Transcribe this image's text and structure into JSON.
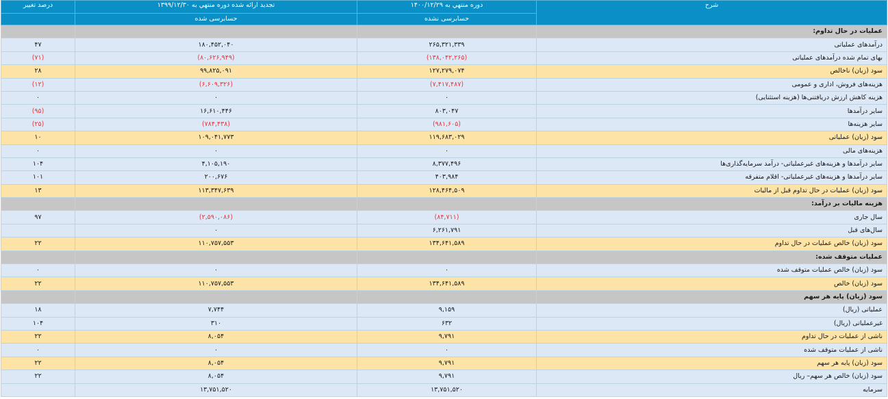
{
  "header": {
    "col_desc": "شرح",
    "col_current": "دوره منتهي به ۱۴۰۰/۱۲/۲۹",
    "col_previous": "تجدید ارائه شده دوره منتهي به ۱۳۹۹/۱۲/۳۰",
    "col_change": "درصد تغییر",
    "current_status": "حسابرسی نشده",
    "previous_status": "حسابرسی شده"
  },
  "rows": [
    {
      "type": "section",
      "label": "عملیات در حال تداوم:",
      "current": "",
      "previous": "",
      "change": ""
    },
    {
      "type": "norm",
      "label": "درآمدهای عملیاتی",
      "current": "۲۶۵,۳۲۱,۳۳۹",
      "previous": "۱۸۰,۴۵۲,۰۴۰",
      "change": "۴۷"
    },
    {
      "type": "norm",
      "label": "بهای تمام شده درآمدهای عملیاتی",
      "current": "(۱۳۸,۰۴۲,۲۶۵)",
      "previous": "(۸۰,۶۲۶,۹۴۹)",
      "change": "(۷۱)"
    },
    {
      "type": "total",
      "label": "سود (زيان) ناخالص",
      "current": "۱۲۷,۲۷۹,۰۷۴",
      "previous": "۹۹,۸۲۵,۰۹۱",
      "change": "۲۸"
    },
    {
      "type": "norm",
      "label": "هزینه‌های فروش، اداری و عمومی",
      "current": "(۷,۴۱۷,۴۸۷)",
      "previous": "(۶,۶۰۹,۳۲۶)",
      "change": "(۱۲)"
    },
    {
      "type": "norm",
      "label": "هزینه کاهش ارزش دریافتنی‌ها (هزینه استثنایی)",
      "current": "۰",
      "previous": "۰",
      "change": "۰"
    },
    {
      "type": "norm",
      "label": "سایر درآمدها",
      "current": "۸۰۳,۰۴۷",
      "previous": "۱۶,۶۱۰,۴۴۶",
      "change": "(۹۵)"
    },
    {
      "type": "norm",
      "label": "سایر هزینه‌ها",
      "current": "(۹۸۱,۶۰۵)",
      "previous": "(۷۸۴,۴۳۸)",
      "change": "(۲۵)"
    },
    {
      "type": "total",
      "label": "سود (زيان) عملیاتی",
      "current": "۱۱۹,۶۸۳,۰۲۹",
      "previous": "۱۰۹,۰۴۱,۷۷۳",
      "change": "۱۰"
    },
    {
      "type": "norm",
      "label": "هزینه‌های مالی",
      "current": "۰",
      "previous": "۰",
      "change": "۰"
    },
    {
      "type": "norm",
      "label": "سایر درآمدها و هزینه‌های غیرعملیاتی- درآمد سرمایه‌گذاری‌ها",
      "current": "۸,۳۷۷,۴۹۶",
      "previous": "۴,۱۰۵,۱۹۰",
      "change": "۱۰۴"
    },
    {
      "type": "norm",
      "label": "سایر درآمدها و هزینه‌های غیرعملیاتی- اقلام متفرقه",
      "current": "۴۰۳,۹۸۴",
      "previous": "۲۰۰,۶۷۶",
      "change": "۱۰۱"
    },
    {
      "type": "total",
      "label": "سود (زيان) عملیات در حال تداوم قبل از مالیات",
      "current": "۱۲۸,۴۶۴,۵۰۹",
      "previous": "۱۱۳,۳۴۷,۶۳۹",
      "change": "۱۳"
    },
    {
      "type": "section",
      "label": "هزینه مالیات بر درآمد:",
      "current": "",
      "previous": "",
      "change": ""
    },
    {
      "type": "norm",
      "label": "سال جاری",
      "current": "(۸۴,۷۱۱)",
      "previous": "(۲,۵۹۰,۰۸۶)",
      "change": "۹۷"
    },
    {
      "type": "norm",
      "label": "سال‌های قبل",
      "current": "۶,۲۶۱,۷۹۱",
      "previous": "۰",
      "change": ""
    },
    {
      "type": "total",
      "label": "سود (زيان) خالص عملیات در حال تداوم",
      "current": "۱۳۴,۶۴۱,۵۸۹",
      "previous": "۱۱۰,۷۵۷,۵۵۳",
      "change": "۲۲"
    },
    {
      "type": "section",
      "label": "عملیات متوقف شده:",
      "current": "",
      "previous": "",
      "change": ""
    },
    {
      "type": "norm",
      "label": "سود (زيان) خالص عملیات متوقف شده",
      "current": "۰",
      "previous": "۰",
      "change": "۰"
    },
    {
      "type": "total",
      "label": "سود (زيان) خالص",
      "current": "۱۳۴,۶۴۱,۵۸۹",
      "previous": "۱۱۰,۷۵۷,۵۵۳",
      "change": "۲۲"
    },
    {
      "type": "section",
      "label": "سود (زيان) پایه هر سهم",
      "current": "",
      "previous": "",
      "change": ""
    },
    {
      "type": "norm",
      "label": "عملیاتی (ریال)",
      "current": "۹,۱۵۹",
      "previous": "۷,۷۴۴",
      "change": "۱۸"
    },
    {
      "type": "norm",
      "label": "غیرعملیاتی (ریال)",
      "current": "۶۳۲",
      "previous": "۳۱۰",
      "change": "۱۰۴"
    },
    {
      "type": "total",
      "label": "ناشی از عملیات در حال تداوم",
      "current": "۹,۷۹۱",
      "previous": "۸,۰۵۴",
      "change": "۲۲"
    },
    {
      "type": "norm",
      "label": "ناشی از عملیات متوقف شده",
      "current": "۰",
      "previous": "۰",
      "change": "۰"
    },
    {
      "type": "total",
      "label": "سود (زيان) پایه هر سهم",
      "current": "۹,۷۹۱",
      "previous": "۸,۰۵۴",
      "change": "۲۲"
    },
    {
      "type": "norm",
      "label": "سود (زيان) خالص هر سهم– ریال",
      "current": "۹,۷۹۱",
      "previous": "۸,۰۵۴",
      "change": "۲۲"
    },
    {
      "type": "norm",
      "label": "سرمایه",
      "current": "۱۳,۷۵۱,۵۲۰",
      "previous": "۱۳,۷۵۱,۵۲۰",
      "change": ""
    }
  ],
  "colors": {
    "header": "#0a8fc7",
    "row": "#dde8f7",
    "total_row": "#fde3a5",
    "section_row": "#c6c6c6",
    "negative": "#e0383b"
  }
}
